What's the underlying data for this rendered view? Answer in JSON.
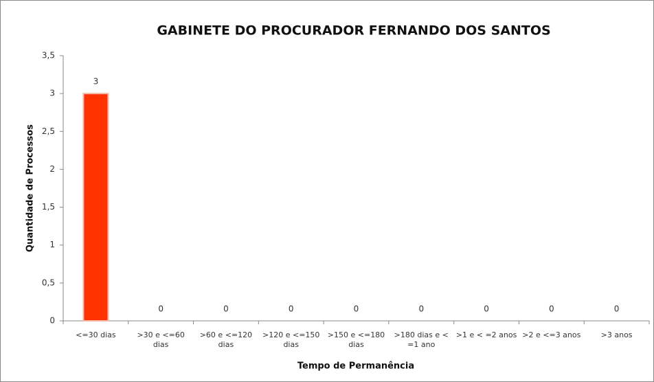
{
  "chart_data": {
    "type": "bar",
    "title": "GABINETE DO PROCURADOR FERNANDO DOS SANTOS",
    "x_label": "Tempo de Permanência",
    "y_label": "Quantidade de Processos",
    "categories": [
      "<=30 dias",
      ">30 e <=60 dias",
      ">60 e <=120 dias",
      ">120 e <=150 dias",
      ">150 e <=180 dias",
      ">180 dias e < =1 ano",
      ">1 e < =2 anos",
      ">2 e <=3 anos",
      ">3 anos"
    ],
    "values": [
      3,
      0,
      0,
      0,
      0,
      0,
      0,
      0,
      0
    ],
    "color": "#ff3300",
    "ylim": [
      0,
      3.5
    ],
    "yticks": [
      0,
      {
        "value": 0.5,
        "label": "0,5"
      },
      1,
      {
        "value": 1.5,
        "label": "1,5"
      },
      2,
      {
        "value": 2.5,
        "label": "2,5"
      },
      3,
      {
        "value": 3.5,
        "label": "3,5"
      }
    ],
    "grid": false
  }
}
